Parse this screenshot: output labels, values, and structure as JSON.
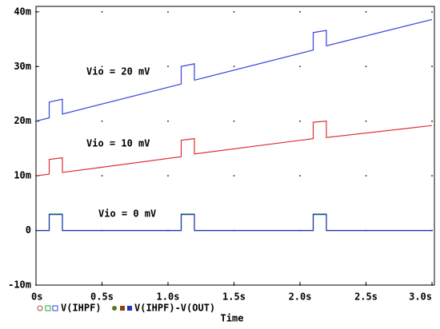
{
  "chart_data": {
    "type": "line",
    "xlabel": "Time",
    "xlim": [
      0,
      3.018
    ],
    "ylim": [
      -0.01,
      0.041
    ],
    "xticks": [
      {
        "value": 0,
        "label": "0s"
      },
      {
        "value": 0.5,
        "label": "0.5s"
      },
      {
        "value": 1.0,
        "label": "1.0s"
      },
      {
        "value": 1.5,
        "label": "1.5s"
      },
      {
        "value": 2.0,
        "label": "2.0s"
      },
      {
        "value": 2.5,
        "label": "2.5s"
      },
      {
        "value": 3.0,
        "label": "3.0s"
      }
    ],
    "yticks": [
      {
        "value": -0.01,
        "label": "-10m"
      },
      0,
      {
        "value": 0.01,
        "label": "10m"
      },
      {
        "value": 0.02,
        "label": "20m"
      },
      {
        "value": 0.03,
        "label": "30m"
      },
      {
        "value": 0.04,
        "label": "40m"
      }
    ],
    "grid": "dots",
    "x": [
      0,
      0.1,
      0.1,
      0.2,
      0.2,
      1.1,
      1.1,
      1.2,
      1.2,
      2.1,
      2.1,
      2.2,
      2.2,
      3.0
    ],
    "series": [
      {
        "color": "#3344dd",
        "values": [
          0.02,
          0.0206,
          0.0235,
          0.024,
          0.0213,
          0.0268,
          0.03,
          0.0305,
          0.0275,
          0.033,
          0.0362,
          0.0366,
          0.0338,
          0.0386
        ]
      },
      {
        "color": "#e03030",
        "values": [
          0.01,
          0.0103,
          0.013,
          0.0133,
          0.0106,
          0.0135,
          0.0165,
          0.0168,
          0.014,
          0.0168,
          0.0198,
          0.02,
          0.017,
          0.0192
        ]
      },
      {
        "color": "#22aa44",
        "values": [
          0,
          0,
          0.003,
          0.003,
          0,
          0,
          0.003,
          0.003,
          0,
          0,
          0.003,
          0.003,
          0,
          0
        ]
      },
      {
        "color": "#2233bb",
        "values": [
          0,
          0,
          0.0029,
          0.0029,
          0,
          0,
          0.0029,
          0.0029,
          0,
          0,
          0.0029,
          0.0029,
          0,
          0
        ]
      }
    ],
    "annotations": [
      "Vio = 20 mV",
      "Vio = 10 mV",
      "Vio = 0 mV"
    ],
    "legend": [
      "V(IHPF)",
      "V(IHPF)-V(OUT)"
    ]
  }
}
